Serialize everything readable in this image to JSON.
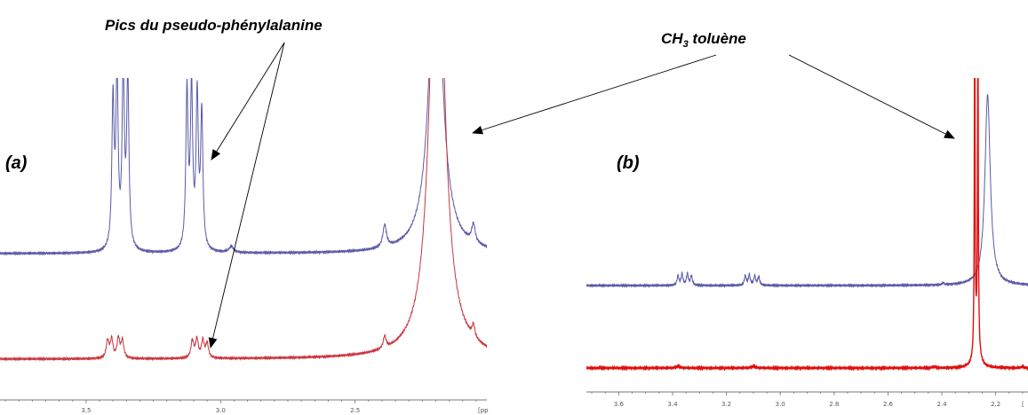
{
  "annotations": {
    "pseudo_phe": "Pics du pseudo-phénylalanine",
    "toluene_prefix": "CH",
    "toluene_sub": "3",
    "toluene_suffix": " toluène"
  },
  "colors": {
    "blue": "#5a5aa8",
    "red": "#c9363e",
    "red_sharp": "#e01010"
  },
  "chart_data": [
    {
      "type": "line",
      "panel_label": "(a)",
      "xlabel": "",
      "ylabel": "",
      "x_unit_label": "[pp",
      "xlim": [
        3.82,
        2.01
      ],
      "x_reversed": true,
      "xticks": [
        3.5,
        3.0,
        2.5
      ],
      "xtick_labels": [
        "3.5",
        "3.0",
        "2.5"
      ],
      "series": [
        {
          "color": "blue",
          "baseline": 0,
          "peaks": [
            {
              "x": 3.4,
              "h": 0.72,
              "w": 0.005
            },
            {
              "x": 3.385,
              "h": 0.82,
              "w": 0.005
            },
            {
              "x": 3.362,
              "h": 0.86,
              "w": 0.005
            },
            {
              "x": 3.345,
              "h": 0.84,
              "w": 0.005
            },
            {
              "x": 3.125,
              "h": 0.77,
              "w": 0.005
            },
            {
              "x": 3.108,
              "h": 0.78,
              "w": 0.005
            },
            {
              "x": 3.087,
              "h": 0.74,
              "w": 0.005
            },
            {
              "x": 3.07,
              "h": 0.66,
              "w": 0.005
            },
            {
              "x": 2.96,
              "h": 0.03,
              "w": 0.01
            },
            {
              "x": 2.39,
              "h": 0.11,
              "w": 0.008
            },
            {
              "x": 2.2,
              "h": 1.6,
              "w": 0.028
            },
            {
              "x": 2.06,
              "h": 0.09,
              "w": 0.008
            }
          ]
        },
        {
          "color": "red",
          "baseline": 0,
          "peaks": [
            {
              "x": 3.42,
              "h": 0.085,
              "w": 0.006
            },
            {
              "x": 3.405,
              "h": 0.09,
              "w": 0.006
            },
            {
              "x": 3.38,
              "h": 0.095,
              "w": 0.006
            },
            {
              "x": 3.365,
              "h": 0.085,
              "w": 0.006
            },
            {
              "x": 3.105,
              "h": 0.085,
              "w": 0.006
            },
            {
              "x": 3.088,
              "h": 0.09,
              "w": 0.006
            },
            {
              "x": 3.066,
              "h": 0.085,
              "w": 0.006
            },
            {
              "x": 3.05,
              "h": 0.07,
              "w": 0.006
            },
            {
              "x": 2.39,
              "h": 0.06,
              "w": 0.006
            },
            {
              "x": 2.195,
              "h": 2.5,
              "w": 0.03
            },
            {
              "x": 2.06,
              "h": 0.06,
              "w": 0.006
            }
          ]
        }
      ]
    },
    {
      "type": "line",
      "panel_label": "(b)",
      "xlabel": "",
      "ylabel": "",
      "x_unit_label": "[",
      "xlim": [
        3.72,
        2.08
      ],
      "x_reversed": true,
      "xticks": [
        3.6,
        3.4,
        3.2,
        3.0,
        2.8,
        2.6,
        2.4,
        2.2
      ],
      "xtick_labels": [
        "3.6",
        "3.4",
        "3.2",
        "3.0",
        "2.8",
        "2.6",
        "2.4",
        "2.2"
      ],
      "series": [
        {
          "color": "blue",
          "baseline": 0,
          "peaks": [
            {
              "x": 3.38,
              "h": 0.05,
              "w": 0.004
            },
            {
              "x": 3.365,
              "h": 0.06,
              "w": 0.004
            },
            {
              "x": 3.345,
              "h": 0.06,
              "w": 0.004
            },
            {
              "x": 3.33,
              "h": 0.05,
              "w": 0.004
            },
            {
              "x": 3.13,
              "h": 0.05,
              "w": 0.004
            },
            {
              "x": 3.115,
              "h": 0.055,
              "w": 0.004
            },
            {
              "x": 3.095,
              "h": 0.05,
              "w": 0.004
            },
            {
              "x": 3.08,
              "h": 0.045,
              "w": 0.004
            },
            {
              "x": 2.395,
              "h": 0.01,
              "w": 0.004
            },
            {
              "x": 2.23,
              "h": 1.0,
              "w": 0.012
            }
          ]
        },
        {
          "color": "red_sharp",
          "baseline": 0,
          "peaks": [
            {
              "x": 3.38,
              "h": 0.01,
              "w": 0.008
            },
            {
              "x": 3.1,
              "h": 0.01,
              "w": 0.008
            },
            {
              "x": 2.43,
              "h": 0.008,
              "w": 0.005
            },
            {
              "x": 2.278,
              "h": 2.0,
              "w": 0.0015
            },
            {
              "x": 2.266,
              "h": 1.9,
              "w": 0.0015
            },
            {
              "x": 2.27,
              "h": 0.15,
              "w": 0.01
            },
            {
              "x": 2.1,
              "h": 0.008,
              "w": 0.005
            }
          ]
        }
      ]
    }
  ]
}
